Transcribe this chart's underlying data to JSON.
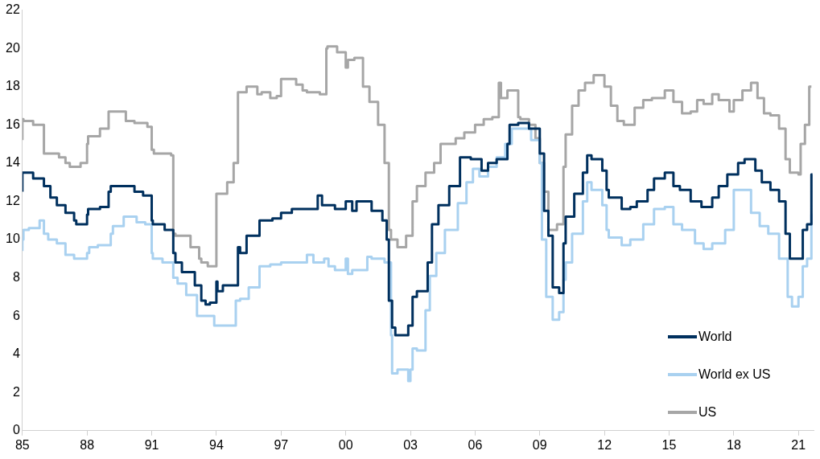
{
  "chart_data": {
    "type": "step",
    "xlim": [
      1985,
      2021.7
    ],
    "xticks": [
      {
        "value": 1985,
        "label": "85"
      },
      {
        "value": 1988,
        "label": "88"
      },
      {
        "value": 1991,
        "label": "91"
      },
      {
        "value": 1994,
        "label": "94"
      },
      {
        "value": 1997,
        "label": "97"
      },
      {
        "value": 2000,
        "label": "00"
      },
      {
        "value": 2003,
        "label": "03"
      },
      {
        "value": 2006,
        "label": "06"
      },
      {
        "value": 2009,
        "label": "09"
      },
      {
        "value": 2012,
        "label": "12"
      },
      {
        "value": 2015,
        "label": "15"
      },
      {
        "value": 2018,
        "label": "18"
      },
      {
        "value": 2021,
        "label": "21"
      }
    ],
    "ylim": [
      0,
      22
    ],
    "yticks": [
      0,
      2,
      4,
      6,
      8,
      10,
      12,
      14,
      16,
      18,
      20,
      22
    ],
    "grid": false,
    "legend": "bottom right",
    "series": [
      {
        "name": "World",
        "color": "#00305e",
        "x": [
          1985,
          1985.05,
          1985.5,
          1986,
          1986.3,
          1986.6,
          1987,
          1987.4,
          1987.5,
          1988,
          1988.05,
          1988.6,
          1989,
          1989.1,
          1989.6,
          1990.2,
          1990.6,
          1991,
          1991.05,
          1991.6,
          1992,
          1992.1,
          1992.4,
          1993,
          1993.3,
          1993.5,
          1993.7,
          1994,
          1994.05,
          1994.3,
          1995,
          1995.1,
          1995.4,
          1996,
          1996.6,
          1997,
          1997.5,
          1998,
          1998.7,
          1998.9,
          1999.5,
          2000,
          2000.3,
          2000.5,
          2001.2,
          2001.7,
          2001.9,
          2002,
          2002.15,
          2002.3,
          2002.9,
          2003.1,
          2003.3,
          2003.8,
          2004,
          2004.3,
          2004.8,
          2005.3,
          2005.8,
          2006.3,
          2006.6,
          2007,
          2007.5,
          2007.6,
          2008,
          2008.5,
          2009,
          2009.2,
          2009.4,
          2009.6,
          2009.9,
          2010.1,
          2010.2,
          2010.6,
          2011,
          2011.2,
          2011.4,
          2011.9,
          2012.1,
          2012.2,
          2012.8,
          2013.2,
          2013.5,
          2014,
          2014.3,
          2014.8,
          2015.2,
          2015.5,
          2016,
          2016.5,
          2017,
          2017.3,
          2017.7,
          2018.2,
          2018.5,
          2019,
          2019.3,
          2019.7,
          2020.1,
          2020.4,
          2020.6,
          2020.8,
          2021.2,
          2021.4,
          2021.6,
          2021.65
        ],
        "values": [
          12.5,
          13.5,
          13.5,
          13.2,
          12.8,
          12.2,
          11.8,
          11.4,
          11.0,
          10.8,
          11.3,
          11.6,
          11.7,
          12.5,
          12.8,
          12.8,
          12.5,
          12.3,
          11.0,
          10.8,
          10.5,
          9.3,
          8.8,
          8.3,
          7.6,
          6.8,
          6.6,
          6.7,
          7.8,
          7.3,
          7.6,
          9.6,
          9.3,
          10.2,
          11.0,
          11.1,
          11.4,
          11.6,
          11.6,
          12.3,
          11.8,
          11.6,
          12.0,
          11.5,
          12.0,
          11.5,
          11.0,
          10.0,
          6.8,
          5.4,
          5.0,
          5.5,
          7.0,
          7.3,
          8.8,
          10.8,
          11.8,
          12.8,
          14.3,
          14.2,
          13.6,
          14.0,
          14.2,
          15.0,
          16.0,
          16.1,
          15.8,
          14.5,
          11.5,
          10.2,
          7.5,
          7.2,
          9.8,
          11.2,
          12.4,
          13.5,
          14.4,
          14.2,
          13.6,
          12.6,
          12.2,
          11.6,
          11.7,
          12.0,
          12.6,
          13.2,
          13.5,
          12.8,
          12.6,
          12.0,
          11.7,
          12.2,
          12.8,
          13.4,
          14.0,
          14.2,
          13.6,
          13.0,
          12.6,
          12.0,
          10.3,
          9.0,
          9.0,
          10.5,
          10.8,
          13.4
        ]
      },
      {
        "name": "World ex US",
        "color": "#a9d1f0",
        "x": [
          1985,
          1985.05,
          1985.3,
          1985.8,
          1986,
          1986.2,
          1986.6,
          1987,
          1987.4,
          1988,
          1988.1,
          1988.5,
          1989.1,
          1989.2,
          1989.7,
          1990.3,
          1990.7,
          1991,
          1991.05,
          1991.5,
          1992,
          1992.2,
          1992.6,
          1993.1,
          1993.3,
          1993.9,
          1994.2,
          1994.9,
          1995.1,
          1995.5,
          1996,
          1996.5,
          1997,
          1998.2,
          1998.5,
          1999,
          1999.2,
          1999.5,
          2000,
          2000.1,
          2000.3,
          2001,
          2001.2,
          2001.8,
          2002.1,
          2002.15,
          2002.4,
          2002.9,
          2003,
          2003.1,
          2003.3,
          2003.7,
          2003.9,
          2004.2,
          2004.6,
          2005.2,
          2005.6,
          2005.9,
          2006.2,
          2006.6,
          2007,
          2007.4,
          2007.7,
          2008,
          2008.6,
          2009,
          2009.1,
          2009.3,
          2009.6,
          2009.9,
          2010.1,
          2010.2,
          2010.5,
          2011,
          2011.2,
          2011.4,
          2011.9,
          2012.1,
          2012.2,
          2012.8,
          2013.2,
          2013.8,
          2014.3,
          2014.8,
          2015.2,
          2015.6,
          2016.2,
          2016.6,
          2017,
          2017.6,
          2018,
          2018.3,
          2018.8,
          2019.2,
          2019.6,
          2020.1,
          2020.5,
          2020.7,
          2021,
          2021.2,
          2021.4,
          2021.6,
          2021.65
        ],
        "values": [
          9.4,
          10.0,
          10.5,
          10.6,
          11.0,
          10.3,
          10.0,
          9.8,
          9.2,
          9.0,
          9.3,
          9.6,
          9.7,
          10.3,
          10.7,
          11.2,
          10.9,
          10.8,
          9.3,
          9.0,
          8.8,
          8.0,
          7.7,
          7.1,
          6.0,
          6.0,
          5.5,
          5.5,
          6.8,
          6.9,
          7.5,
          8.6,
          8.7,
          8.8,
          9.2,
          8.8,
          9.0,
          8.6,
          8.4,
          9.0,
          8.2,
          8.4,
          9.1,
          9.0,
          8.8,
          5.0,
          3.0,
          3.2,
          2.6,
          3.2,
          4.3,
          4.2,
          6.3,
          8.1,
          9.3,
          10.5,
          11.9,
          13.0,
          13.7,
          13.3,
          13.8,
          14.3,
          15.0,
          15.8,
          15.8,
          15.2,
          14.0,
          10.0,
          7.0,
          5.8,
          6.2,
          7.9,
          8.8,
          10.3,
          12.0,
          13.0,
          12.6,
          11.8,
          10.5,
          10.1,
          9.7,
          10.0,
          10.8,
          11.6,
          11.7,
          10.8,
          10.5,
          9.8,
          9.5,
          9.8,
          10.5,
          12.6,
          12.6,
          11.4,
          10.7,
          10.3,
          9.0,
          7.0,
          6.5,
          7.0,
          8.6,
          9.0,
          11.3
        ]
      },
      {
        "name": "US",
        "color": "#a6a6a6",
        "x": [
          1985,
          1985.05,
          1985.5,
          1986,
          1986.05,
          1986.7,
          1987,
          1987.2,
          1987.7,
          1988,
          1988.05,
          1988.6,
          1989,
          1989.1,
          1989.8,
          1990.2,
          1990.8,
          1991,
          1991.1,
          1991.9,
          1992,
          1992.1,
          1992.8,
          1993.2,
          1993.3,
          1993.6,
          1993.8,
          1994,
          1994.05,
          1994.5,
          1994.8,
          1995,
          1995.1,
          1995.4,
          1995.9,
          1996.1,
          1996.5,
          1996.8,
          1997,
          1997.1,
          1997.7,
          1998,
          1998.2,
          1998.8,
          1999.1,
          1999.15,
          1999.6,
          2000,
          2000.1,
          2000.4,
          2000.8,
          2001.1,
          2001.5,
          2001.8,
          2002,
          2002.1,
          2002.4,
          2002.8,
          2003.1,
          2003.3,
          2003.7,
          2004.1,
          2004.4,
          2004.7,
          2005.1,
          2005.5,
          2006,
          2006.4,
          2006.8,
          2007.1,
          2007.2,
          2007.5,
          2008,
          2008.1,
          2008.5,
          2008.8,
          2009,
          2009.2,
          2009.4,
          2009.8,
          2010.1,
          2010.2,
          2010.5,
          2010.8,
          2011.1,
          2011.5,
          2012,
          2012.3,
          2012.6,
          2012.9,
          2013.4,
          2013.8,
          2014.2,
          2014.8,
          2015.2,
          2015.6,
          2016,
          2016.3,
          2016.6,
          2017,
          2017.3,
          2017.8,
          2018,
          2018.4,
          2018.8,
          2019.1,
          2019.4,
          2019.7,
          2020.1,
          2020.4,
          2020.6,
          2021,
          2021.1,
          2021.3,
          2021.5,
          2021.6
        ],
        "values": [
          15.2,
          16.3,
          16.2,
          16.0,
          14.5,
          14.5,
          14.3,
          14.0,
          13.8,
          14.0,
          15.0,
          15.4,
          15.8,
          16.7,
          16.7,
          16.2,
          16.1,
          15.9,
          14.7,
          14.5,
          14.4,
          10.3,
          10.2,
          9.6,
          9.0,
          8.8,
          8.6,
          8.6,
          12.4,
          12.4,
          13.0,
          14.0,
          17.7,
          17.7,
          18.0,
          17.6,
          17.7,
          17.4,
          17.5,
          18.4,
          18.4,
          18.1,
          17.8,
          17.7,
          17.6,
          20.0,
          20.1,
          19.8,
          19.0,
          19.4,
          19.5,
          18.0,
          17.2,
          16.0,
          14.0,
          10.5,
          10.0,
          9.6,
          10.2,
          12.0,
          12.8,
          13.5,
          14.0,
          15.0,
          15.0,
          15.3,
          15.6,
          16.0,
          16.3,
          16.4,
          18.2,
          17.4,
          17.8,
          16.4,
          16.3,
          16.0,
          15.3,
          14.0,
          12.5,
          10.5,
          10.8,
          13.8,
          15.5,
          17.0,
          17.8,
          18.2,
          18.6,
          18.0,
          17.0,
          16.2,
          16.0,
          16.9,
          17.3,
          17.4,
          17.8,
          17.2,
          16.6,
          16.7,
          17.3,
          17.1,
          17.6,
          17.3,
          16.7,
          17.3,
          17.8,
          18.2,
          17.4,
          16.6,
          16.5,
          15.8,
          14.2,
          13.5,
          13.4,
          15.0,
          16.0,
          18.0
        ]
      }
    ]
  }
}
